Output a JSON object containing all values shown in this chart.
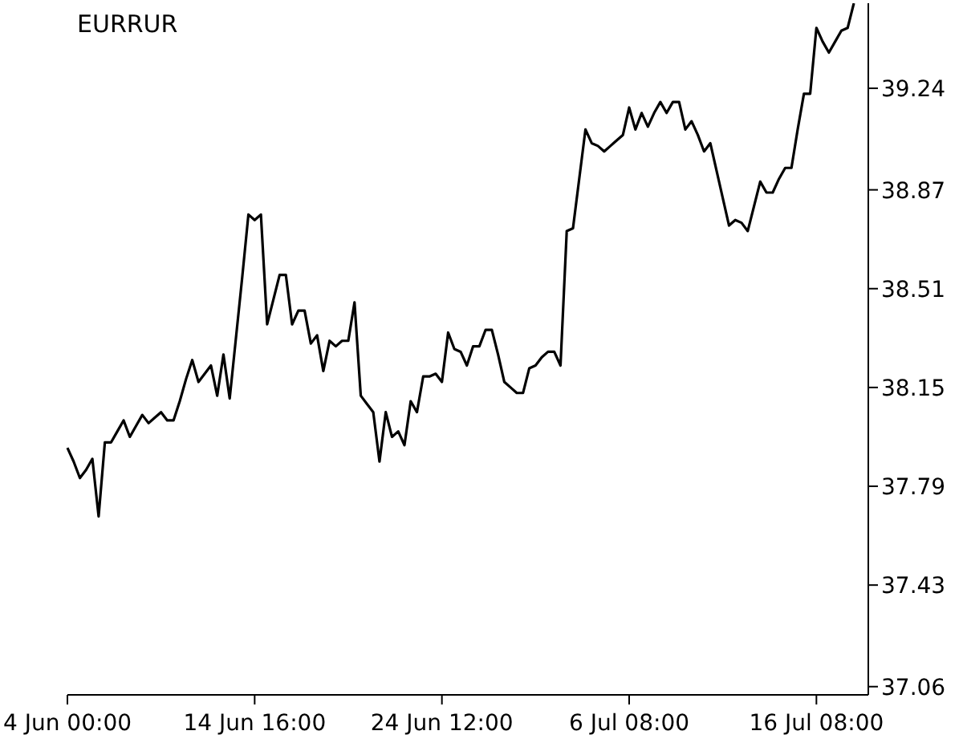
{
  "chart_data": {
    "type": "line",
    "title": "EURRUR",
    "categories": [
      "4 Jun 00:00",
      null,
      null,
      null,
      null,
      null,
      null,
      null,
      null,
      null,
      null,
      null,
      null,
      null,
      null,
      null,
      null,
      null,
      null,
      null,
      null,
      null,
      null,
      null,
      null,
      null,
      null,
      null,
      null,
      null,
      "14 Jun 16:00",
      null,
      null,
      null,
      null,
      null,
      null,
      null,
      null,
      null,
      null,
      null,
      null,
      null,
      null,
      null,
      null,
      null,
      null,
      null,
      null,
      null,
      null,
      null,
      null,
      null,
      null,
      null,
      null,
      null,
      "24 Jun 12:00",
      null,
      null,
      null,
      null,
      null,
      null,
      null,
      null,
      null,
      null,
      null,
      null,
      null,
      null,
      null,
      null,
      null,
      null,
      null,
      null,
      null,
      null,
      null,
      null,
      null,
      null,
      null,
      null,
      null,
      "6 Jul 08:00",
      null,
      null,
      null,
      null,
      null,
      null,
      null,
      null,
      null,
      null,
      null,
      null,
      null,
      null,
      null,
      null,
      null,
      null,
      null,
      null,
      null,
      null,
      null,
      null,
      null,
      null,
      null,
      null,
      null,
      "16 Jul 08:00",
      null,
      null,
      null,
      null,
      null,
      null
    ],
    "series": [
      {
        "color": "#000000",
        "values": [
          37.93,
          37.88,
          37.82,
          37.85,
          37.89,
          37.68,
          37.95,
          37.95,
          37.99,
          38.03,
          37.97,
          38.01,
          38.05,
          38.02,
          38.04,
          38.06,
          38.03,
          38.03,
          38.1,
          38.18,
          38.25,
          38.17,
          38.2,
          38.23,
          38.12,
          38.27,
          38.11,
          38.33,
          38.55,
          38.78,
          38.76,
          38.78,
          38.38,
          38.47,
          38.56,
          38.56,
          38.38,
          38.43,
          38.43,
          38.31,
          38.34,
          38.21,
          38.32,
          38.3,
          38.32,
          38.32,
          38.46,
          38.12,
          38.09,
          38.06,
          37.88,
          38.06,
          37.97,
          37.99,
          37.94,
          38.1,
          38.06,
          38.19,
          38.19,
          38.2,
          38.17,
          38.35,
          38.29,
          38.28,
          38.23,
          38.3,
          38.3,
          38.36,
          38.36,
          38.27,
          38.17,
          38.15,
          38.13,
          38.13,
          38.22,
          38.23,
          38.26,
          38.28,
          38.28,
          38.23,
          38.72,
          38.73,
          38.91,
          39.09,
          39.04,
          39.03,
          39.01,
          39.03,
          39.05,
          39.07,
          39.17,
          39.09,
          39.15,
          39.1,
          39.15,
          39.19,
          39.15,
          39.19,
          39.19,
          39.09,
          39.12,
          39.07,
          39.01,
          39.04,
          38.94,
          38.84,
          38.74,
          38.76,
          38.75,
          38.72,
          38.81,
          38.9,
          38.86,
          38.86,
          38.91,
          38.95,
          38.95,
          39.09,
          39.22,
          39.22,
          39.46,
          39.41,
          39.37,
          39.41,
          39.45,
          39.46,
          39.55
        ]
      }
    ],
    "ylim": [
      37.03,
      39.55
    ],
    "yticks": [
      37.06,
      37.43,
      37.79,
      38.15,
      38.51,
      38.87,
      39.24
    ]
  }
}
